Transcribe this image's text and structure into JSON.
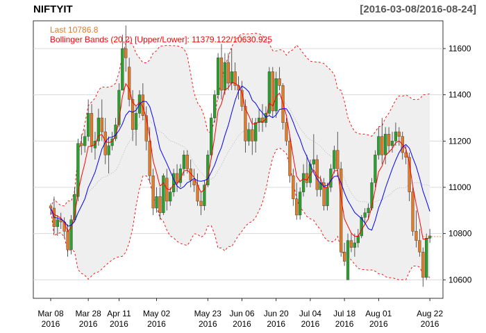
{
  "header": {
    "symbol": "NIFTYIT",
    "date_range": "[2016-03-08/2016-08-24]"
  },
  "legend": {
    "last_label": "Last 10786.8",
    "bb_label": "Bollinger Bands (20,2) [Upper/Lower]: 11379.122/10630.925"
  },
  "colors": {
    "up": "#2ca02c",
    "down": "#e07b27",
    "band_fill": "#efefef",
    "band_line": "#ff0000",
    "ema": "#ff0000",
    "sma": "#0000ff",
    "mid": "#aaaaaa",
    "grid": "#d8d8d8",
    "last": "#e07b27",
    "bb": "#ff0000"
  },
  "chart_data": {
    "type": "candlestick",
    "title": "NIFTYIT",
    "date_range": "[2016-03-08/2016-08-24]",
    "ylim": [
      10520,
      11720
    ],
    "y_ticks": [
      10600,
      10800,
      11000,
      11200,
      11400,
      11600
    ],
    "x_ticks": [
      {
        "label": "Mar 08",
        "year": "2016",
        "index": 0
      },
      {
        "label": "Mar 28",
        "year": "2016",
        "index": 11
      },
      {
        "label": "Apr 11",
        "year": "2016",
        "index": 20
      },
      {
        "label": "May 02",
        "year": "2016",
        "index": 31
      },
      {
        "label": "May 23",
        "year": "2016",
        "index": 46
      },
      {
        "label": "Jun 06",
        "year": "2016",
        "index": 56
      },
      {
        "label": "Jun 20",
        "year": "2016",
        "index": 66
      },
      {
        "label": "Jul 04",
        "year": "2016",
        "index": 76
      },
      {
        "label": "Jul 18",
        "year": "2016",
        "index": 86
      },
      {
        "label": "Aug 01",
        "year": "2016",
        "index": 96
      },
      {
        "label": "Aug 22",
        "year": "2016",
        "index": 111
      }
    ],
    "bollinger": {
      "period": 20,
      "sd": 2,
      "upper": 11379.122,
      "lower": 10630.925
    },
    "last": 10786.8,
    "ohlc": [
      [
        10920,
        10930,
        10880,
        10910
      ],
      [
        10910,
        10960,
        10800,
        10830
      ],
      [
        10830,
        10880,
        10790,
        10860
      ],
      [
        10860,
        10890,
        10820,
        10850
      ],
      [
        10850,
        10870,
        10780,
        10810
      ],
      [
        10810,
        10840,
        10700,
        10730
      ],
      [
        10730,
        10880,
        10710,
        10860
      ],
      [
        10860,
        11000,
        10850,
        10970
      ],
      [
        10960,
        11210,
        10940,
        11190
      ],
      [
        11190,
        11230,
        11140,
        11180
      ],
      [
        11180,
        11250,
        11150,
        11220
      ],
      [
        11220,
        11380,
        11200,
        11320
      ],
      [
        11320,
        11360,
        11150,
        11180
      ],
      [
        11170,
        11240,
        11120,
        11200
      ],
      [
        11200,
        11340,
        11180,
        11300
      ],
      [
        11300,
        11380,
        11200,
        11240
      ],
      [
        11240,
        11300,
        11100,
        11140
      ],
      [
        11140,
        11220,
        11060,
        11180
      ],
      [
        11180,
        11240,
        11160,
        11210
      ],
      [
        11210,
        11300,
        11200,
        11270
      ],
      [
        11270,
        11450,
        11260,
        11420
      ],
      [
        11420,
        11660,
        11420,
        11600
      ],
      [
        11600,
        11700,
        11500,
        11560
      ],
      [
        11520,
        11560,
        11350,
        11380
      ],
      [
        11380,
        11420,
        11200,
        11250
      ],
      [
        11250,
        11350,
        11180,
        11320
      ],
      [
        11320,
        11420,
        11300,
        11400
      ],
      [
        11400,
        11450,
        11290,
        11310
      ],
      [
        11310,
        11350,
        11160,
        11200
      ],
      [
        11200,
        11260,
        11020,
        11050
      ],
      [
        11050,
        11080,
        10880,
        10910
      ],
      [
        10910,
        11000,
        10890,
        10960
      ],
      [
        10960,
        11000,
        10860,
        10890
      ],
      [
        10890,
        11060,
        10880,
        11050
      ],
      [
        11040,
        11080,
        10900,
        10940
      ],
      [
        10940,
        11000,
        10920,
        10980
      ],
      [
        10980,
        11080,
        10960,
        11060
      ],
      [
        11060,
        11100,
        10980,
        11020
      ],
      [
        11020,
        11100,
        11000,
        11080
      ],
      [
        11080,
        11160,
        11050,
        11140
      ],
      [
        11140,
        11160,
        11060,
        11080
      ],
      [
        11080,
        11120,
        11000,
        11030
      ],
      [
        11030,
        11080,
        10980,
        11010
      ],
      [
        11010,
        11060,
        10920,
        10940
      ],
      [
        10940,
        10980,
        10880,
        10920
      ],
      [
        10920,
        11030,
        10900,
        11010
      ],
      [
        11010,
        11160,
        11000,
        11140
      ],
      [
        11140,
        11320,
        11120,
        11300
      ],
      [
        11300,
        11420,
        11280,
        11400
      ],
      [
        11400,
        11580,
        11380,
        11560
      ],
      [
        11560,
        11620,
        11380,
        11420
      ],
      [
        11420,
        11580,
        11400,
        11540
      ],
      [
        11540,
        11580,
        11420,
        11450
      ],
      [
        11450,
        11600,
        11420,
        11500
      ],
      [
        11500,
        11540,
        11420,
        11440
      ],
      [
        11440,
        11480,
        11380,
        11420
      ],
      [
        11420,
        11460,
        11330,
        11350
      ],
      [
        11350,
        11380,
        11150,
        11200
      ],
      [
        11200,
        11280,
        11180,
        11250
      ],
      [
        11250,
        11300,
        11140,
        11200
      ],
      [
        11200,
        11300,
        11150,
        11280
      ],
      [
        11280,
        11340,
        11240,
        11300
      ],
      [
        11300,
        11360,
        11240,
        11280
      ],
      [
        11280,
        11350,
        11260,
        11320
      ],
      [
        11320,
        11520,
        11310,
        11500
      ],
      [
        11500,
        11520,
        11300,
        11330
      ],
      [
        11330,
        11500,
        11300,
        11470
      ],
      [
        11470,
        11520,
        11420,
        11440
      ],
      [
        11440,
        11450,
        11250,
        11280
      ],
      [
        11280,
        11300,
        11180,
        11200
      ],
      [
        11200,
        11230,
        11020,
        11050
      ],
      [
        11050,
        11080,
        10920,
        10950
      ],
      [
        10950,
        11020,
        10860,
        10880
      ],
      [
        10880,
        11000,
        10860,
        10980
      ],
      [
        10980,
        11100,
        10960,
        11060
      ],
      [
        11060,
        11140,
        11000,
        11020
      ],
      [
        11020,
        11120,
        11000,
        11100
      ],
      [
        11100,
        11230,
        11080,
        11120
      ],
      [
        11120,
        11140,
        10960,
        10990
      ],
      [
        10990,
        11050,
        10960,
        11020
      ],
      [
        11020,
        11040,
        10900,
        10920
      ],
      [
        10920,
        11020,
        10900,
        11000
      ],
      [
        11000,
        11100,
        10980,
        11080
      ],
      [
        11080,
        11180,
        11060,
        11160
      ],
      [
        11160,
        11240,
        11050,
        11080
      ],
      [
        11080,
        11110,
        10700,
        10720
      ],
      [
        10720,
        10760,
        10660,
        10680
      ],
      [
        10600,
        10800,
        10600,
        10770
      ],
      [
        10770,
        10800,
        10720,
        10740
      ],
      [
        10740,
        10800,
        10700,
        10760
      ],
      [
        10760,
        10820,
        10740,
        10790
      ],
      [
        10790,
        10880,
        10780,
        10870
      ],
      [
        10870,
        10910,
        10840,
        10890
      ],
      [
        10890,
        10930,
        10860,
        10910
      ],
      [
        10910,
        11040,
        10900,
        11020
      ],
      [
        11020,
        11160,
        11000,
        11140
      ],
      [
        11140,
        11260,
        11120,
        11220
      ],
      [
        11220,
        11300,
        11100,
        11140
      ],
      [
        11140,
        11260,
        11100,
        11230
      ],
      [
        11230,
        11260,
        11150,
        11180
      ],
      [
        11180,
        11240,
        11150,
        11200
      ],
      [
        11200,
        11280,
        11180,
        11240
      ],
      [
        11240,
        11260,
        11180,
        11220
      ],
      [
        11220,
        11240,
        11120,
        11150
      ],
      [
        11150,
        11180,
        11100,
        11130
      ],
      [
        11130,
        11150,
        10940,
        10980
      ],
      [
        10980,
        11000,
        10790,
        10810
      ],
      [
        10810,
        10900,
        10740,
        10770
      ],
      [
        10770,
        10820,
        10700,
        10720
      ],
      [
        10720,
        10740,
        10570,
        10610
      ],
      [
        10610,
        10800,
        10600,
        10780
      ],
      [
        10780,
        10820,
        10760,
        10790
      ]
    ]
  }
}
